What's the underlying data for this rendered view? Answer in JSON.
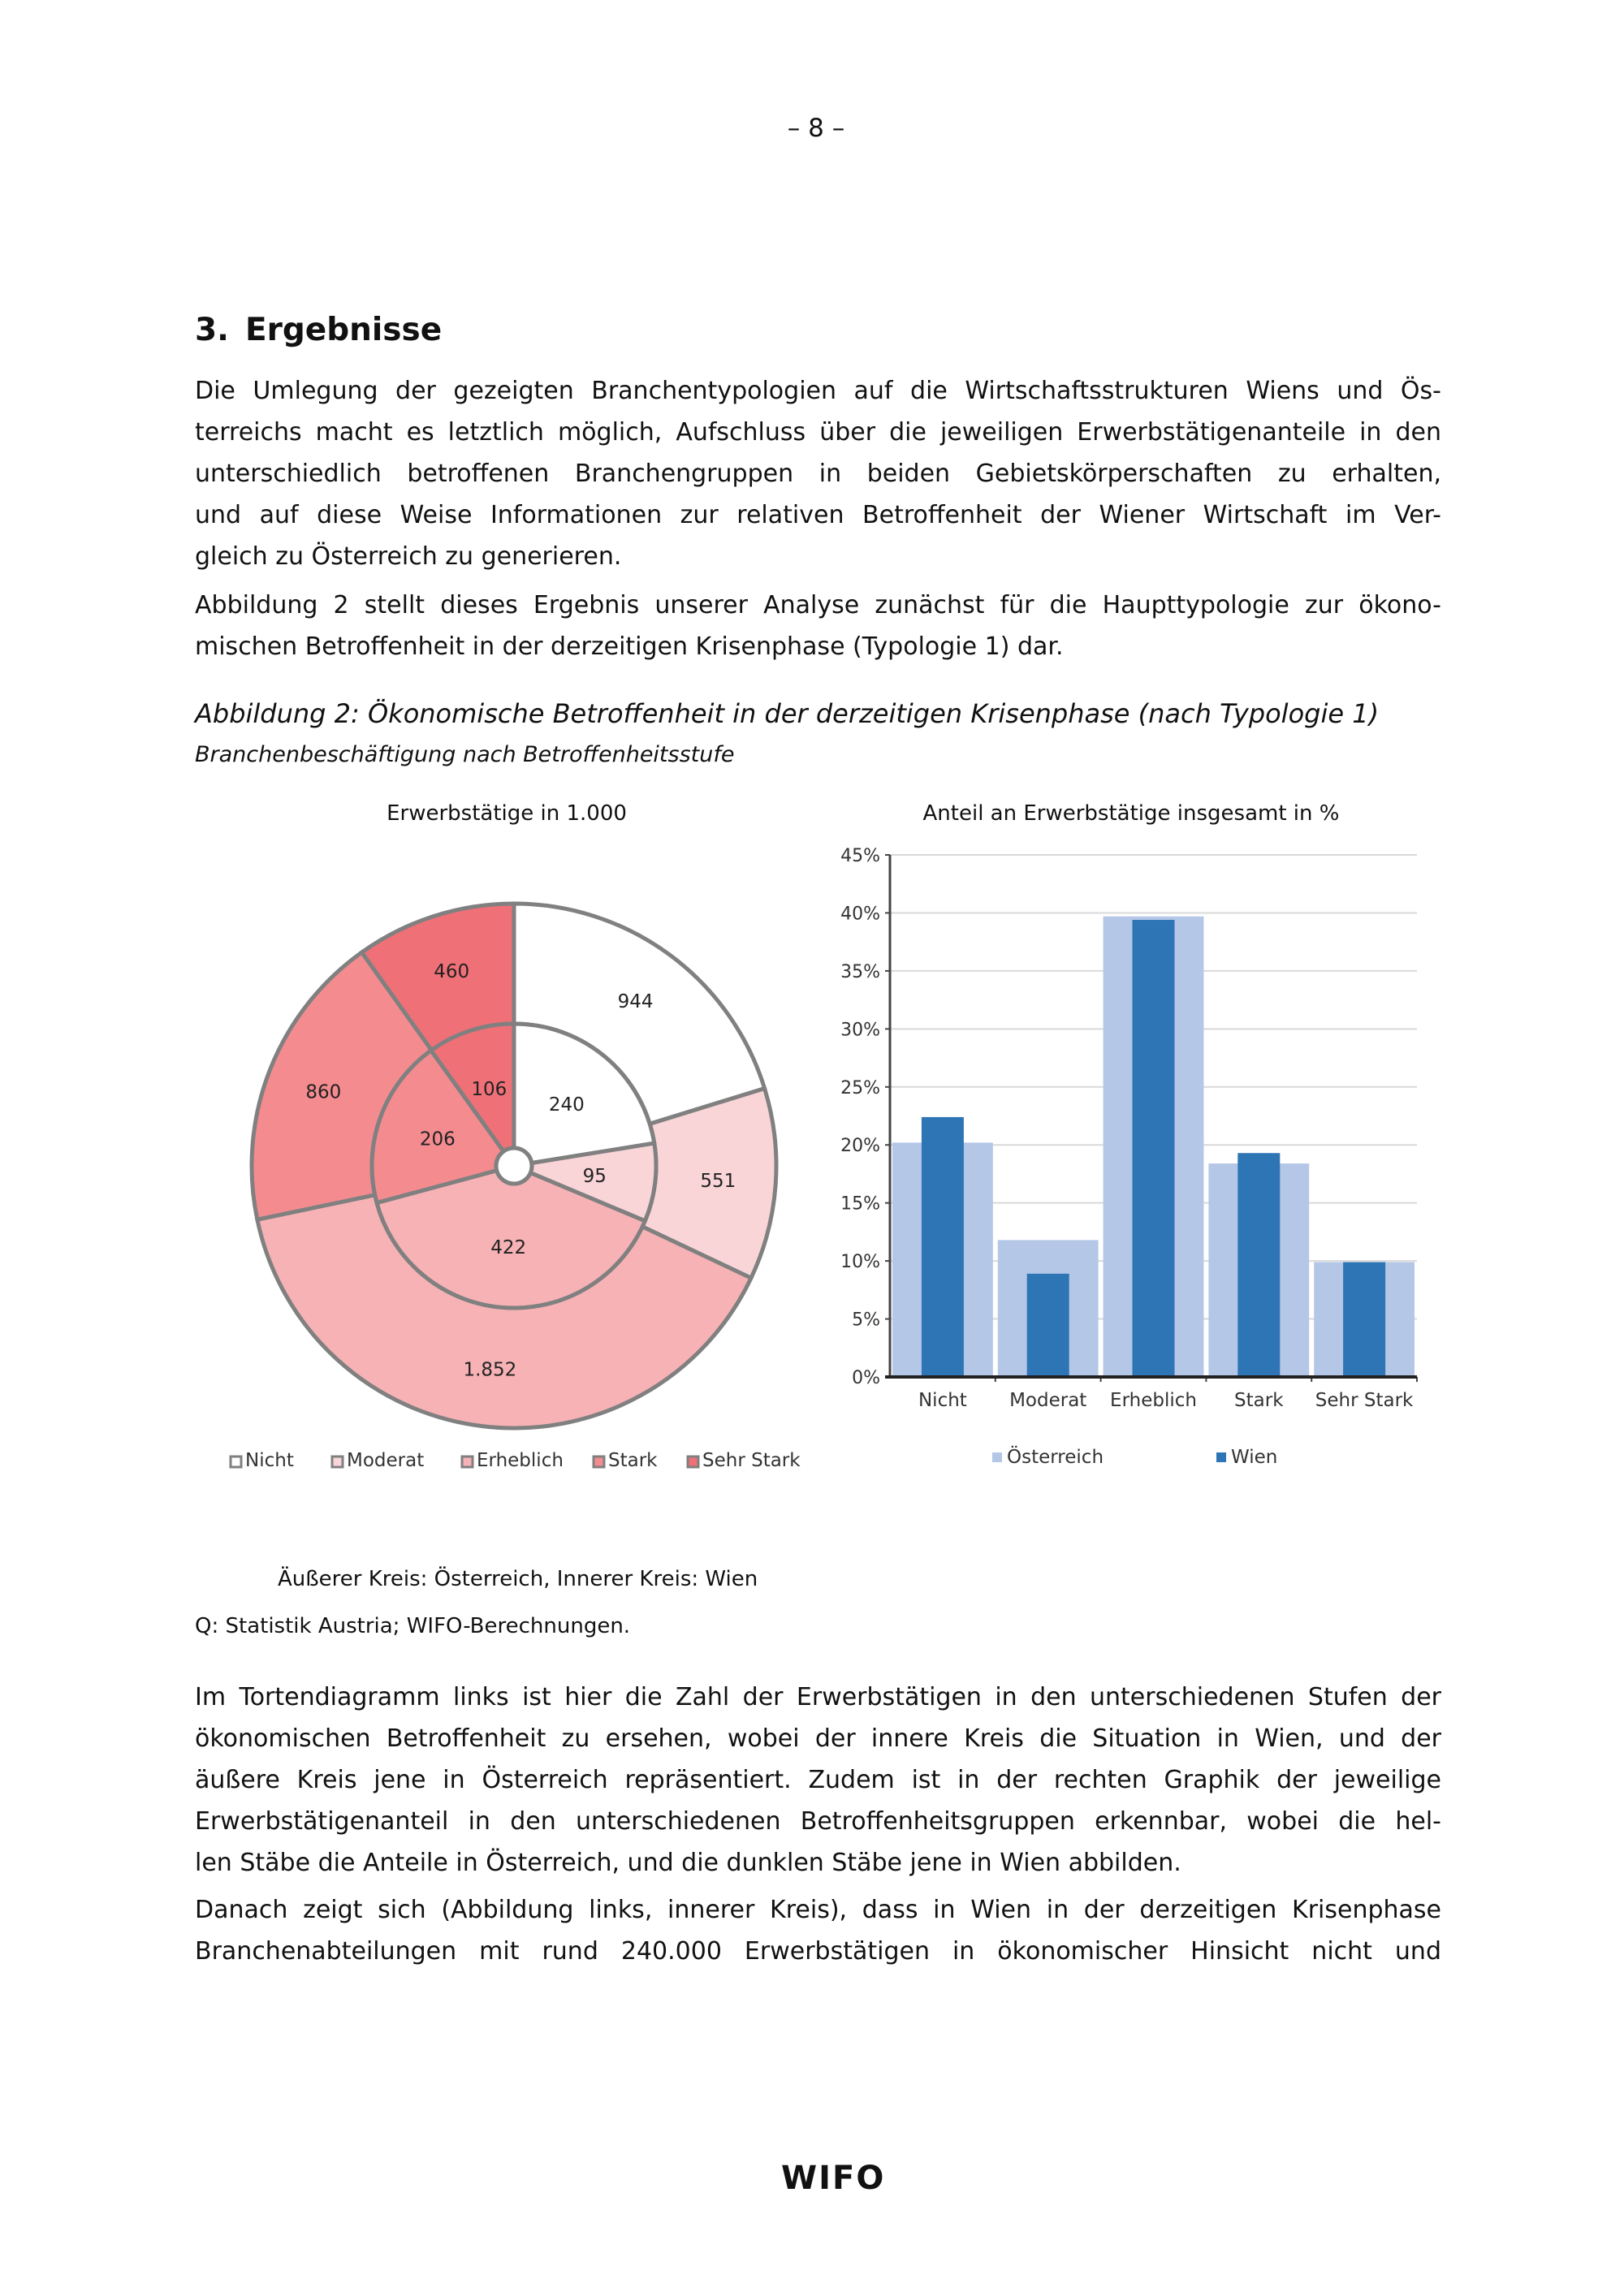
{
  "page_number": "– 8 –",
  "section": {
    "number": "3.",
    "title": "Ergebnisse"
  },
  "paragraph1": [
    "Die Umlegung der gezeigten Branchentypologien auf die Wirtschaftsstrukturen Wiens und Ös-",
    "terreichs macht es letztlich möglich, Aufschluss über die jeweiligen Erwerbstätigenanteile in den",
    "unterschiedlich betroffenen Branchengruppen in beiden Gebietskörperschaften zu erhalten,",
    "und auf diese Weise Informationen zur relativen Betroffenheit der Wiener Wirtschaft im Ver-",
    "gleich zu Österreich zu generieren."
  ],
  "paragraph2": [
    "Abbildung 2 stellt dieses Ergebnis unserer Analyse zunächst für die Haupttypologie zur ökono-",
    "mischen Betroffenheit in der derzeitigen Krisenphase (Typologie 1) dar."
  ],
  "figure": {
    "caption": "Abbildung 2: Ökonomische Betroffenheit in der derzeitigen Krisenphase (nach Typologie 1)",
    "subcaption": "Branchenbeschäftigung nach Betroffenheitsstufe",
    "note": "Äußerer Kreis: Österreich, Innerer Kreis: Wien",
    "source": "Q: Statistik Austria; WIFO-Berechnungen."
  },
  "chart_data": [
    {
      "type": "pie",
      "title": "Erwerbstätige in 1.000",
      "categories": [
        "Nicht",
        "Moderat",
        "Erheblich",
        "Stark",
        "Sehr Stark"
      ],
      "colors": [
        "#ffffff",
        "#f9d5d8",
        "#f7b2b5",
        "#f48b8f",
        "#f07077"
      ],
      "series": [
        {
          "ring": "outer",
          "values": [
            944,
            551,
            1852,
            860,
            460
          ],
          "labels": [
            "944",
            "551",
            "1.852",
            "860",
            "460"
          ]
        },
        {
          "ring": "inner",
          "values": [
            240,
            95,
            422,
            206,
            106
          ],
          "labels": [
            "240",
            "95",
            "422",
            "206",
            "106"
          ]
        }
      ],
      "legend": "bottom"
    },
    {
      "type": "bar",
      "title": "Anteil an Erwerbstätige insgesamt in %",
      "categories": [
        "Nicht",
        "Moderat",
        "Erheblich",
        "Stark",
        "Sehr Stark"
      ],
      "series": [
        {
          "name": "Österreich",
          "color": "#b4c7e7",
          "values": [
            20.2,
            11.8,
            39.7,
            18.4,
            9.9
          ]
        },
        {
          "name": "Wien",
          "color": "#2e75b6",
          "values": [
            22.4,
            8.9,
            39.4,
            19.3,
            9.9
          ]
        }
      ],
      "ylim": [
        0,
        45
      ],
      "yticks": [
        "0%",
        "5%",
        "10%",
        "15%",
        "20%",
        "25%",
        "30%",
        "35%",
        "40%",
        "45%"
      ],
      "grid": true,
      "legend": "bottom"
    }
  ],
  "paragraph3": [
    "Im Tortendiagramm links ist hier die Zahl der Erwerbstätigen in den unterschiedenen Stufen der",
    "ökonomischen Betroffenheit zu ersehen, wobei der innere Kreis die Situation in Wien, und der",
    "äußere Kreis jene in Österreich repräsentiert. Zudem ist in der rechten Graphik der jeweilige",
    "Erwerbstätigenanteil in den unterschiedenen Betroffenheitsgruppen erkennbar, wobei die hel-",
    "len Stäbe die Anteile in Österreich, und die dunklen Stäbe jene in Wien abbilden."
  ],
  "paragraph4": [
    "Danach zeigt sich (Abbildung links, innerer Kreis), dass in Wien in der derzeitigen Krisenphase",
    "Branchenabteilungen mit rund 240.000 Erwerbstätigen in ökonomischer Hinsicht nicht und"
  ],
  "footer": {
    "logo": "WIFO"
  }
}
